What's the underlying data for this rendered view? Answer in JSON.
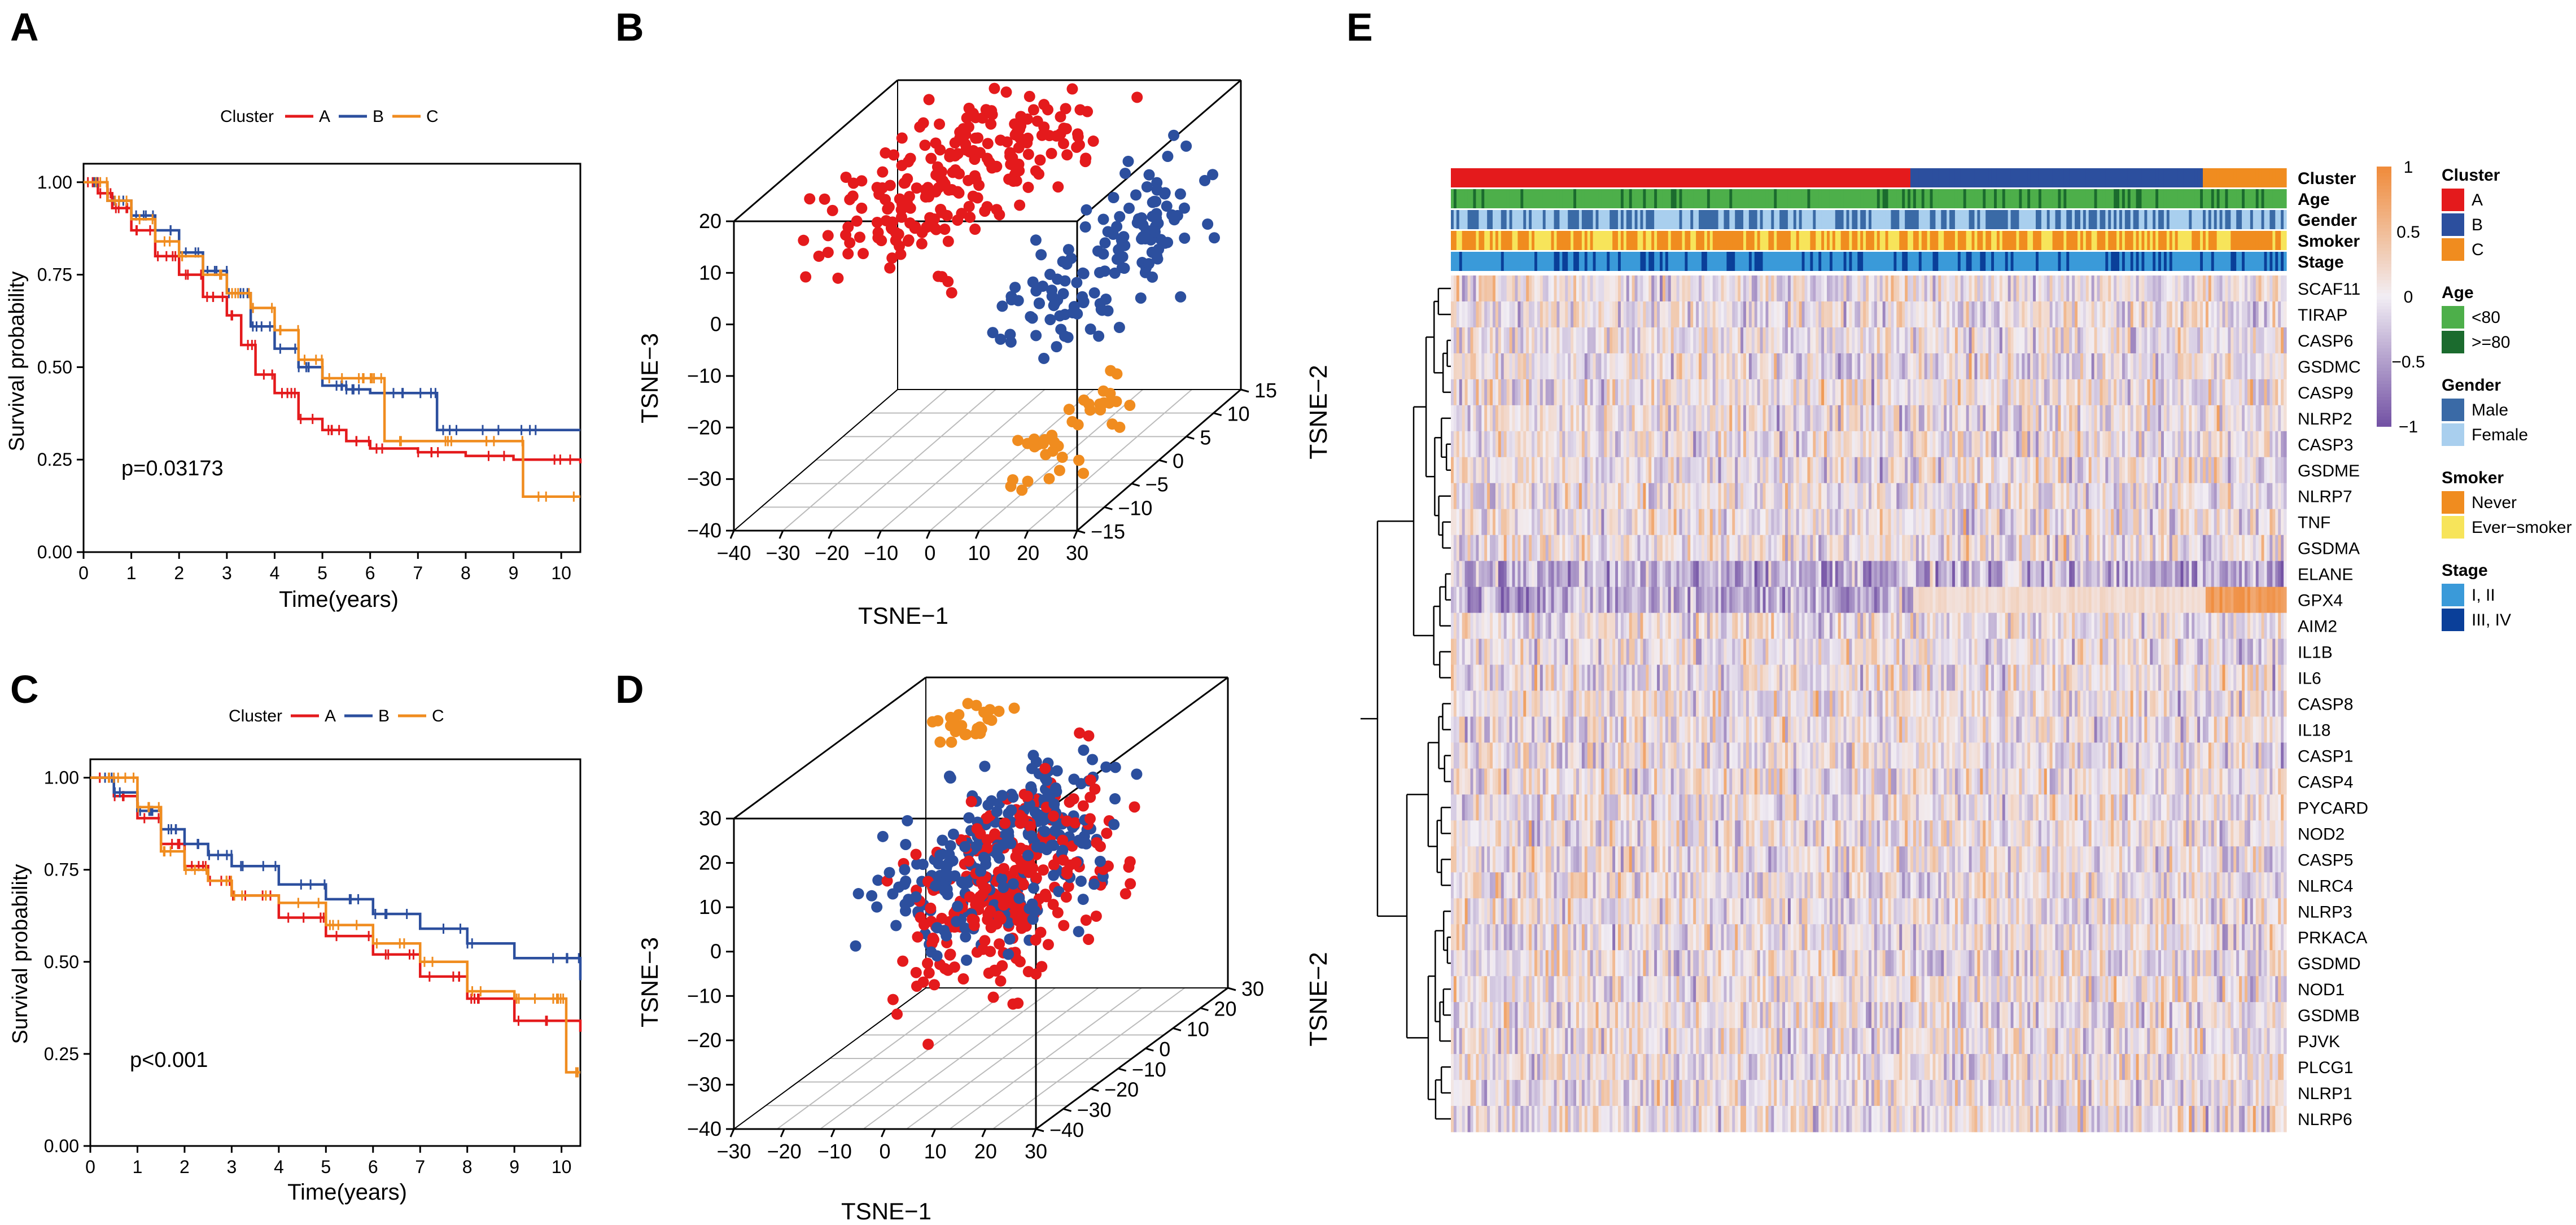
{
  "colors": {
    "cluster_a": "#e41a1c",
    "cluster_b": "#2c4f9e",
    "cluster_c": "#f08c1f",
    "heat_high": "#f08c3c",
    "heat_mid": "#f2eef4",
    "heat_low": "#7453a5",
    "age_lt80": "#4daf4a",
    "age_ge80": "#1b6b2e",
    "gender_male": "#3a6aa6",
    "gender_female": "#a9cfee",
    "smoker_never": "#f08c1f",
    "smoker_ever": "#f7e45a",
    "stage_1_2": "#3a9ad9",
    "stage_3_4": "#0a3f99"
  },
  "panels": {
    "a": "A",
    "b": "B",
    "c": "C",
    "d": "D",
    "e": "E"
  },
  "chart_data": [
    {
      "panel": "A",
      "type": "line",
      "subtype": "kaplan-meier",
      "legend_title": "Cluster",
      "legend_labels": [
        "A",
        "B",
        "C"
      ],
      "xlabel": "Time(years)",
      "ylabel": "Survival probability",
      "xlim": [
        0,
        10.4
      ],
      "ylim": [
        0,
        1.05
      ],
      "xticks": [
        0,
        1,
        2,
        3,
        4,
        5,
        6,
        7,
        8,
        9,
        10
      ],
      "yticks": [
        "0.00",
        "0.25",
        "0.50",
        "0.75",
        "1.00"
      ],
      "annotation": "p=0.03173",
      "series": [
        {
          "name": "A",
          "x": [
            0,
            0.3,
            0.6,
            1.0,
            1.5,
            2.0,
            2.5,
            3.0,
            3.3,
            3.6,
            4.0,
            4.5,
            5.0,
            5.5,
            6.0,
            7.0,
            8.0,
            9.0,
            10.4
          ],
          "y": [
            1.0,
            0.97,
            0.93,
            0.87,
            0.8,
            0.75,
            0.69,
            0.64,
            0.56,
            0.48,
            0.43,
            0.36,
            0.33,
            0.3,
            0.28,
            0.27,
            0.26,
            0.25,
            0.24
          ]
        },
        {
          "name": "B",
          "x": [
            0,
            0.5,
            1.0,
            1.5,
            2.0,
            2.5,
            3.0,
            3.5,
            4.0,
            4.5,
            5.0,
            5.5,
            6.0,
            7.0,
            7.4,
            8.0,
            9.0,
            10.4
          ],
          "y": [
            1.0,
            0.95,
            0.91,
            0.87,
            0.81,
            0.76,
            0.7,
            0.61,
            0.55,
            0.5,
            0.45,
            0.44,
            0.43,
            0.43,
            0.33,
            0.33,
            0.33,
            0.33
          ]
        },
        {
          "name": "C",
          "x": [
            0,
            0.5,
            1.0,
            1.5,
            2.0,
            2.5,
            3.0,
            3.5,
            4.0,
            4.5,
            5.0,
            5.5,
            6.0,
            6.3,
            7.0,
            8.0,
            9.0,
            9.2,
            10.4
          ],
          "y": [
            1.0,
            0.95,
            0.9,
            0.84,
            0.8,
            0.75,
            0.7,
            0.66,
            0.6,
            0.52,
            0.47,
            0.47,
            0.47,
            0.3,
            0.3,
            0.3,
            0.3,
            0.15,
            0.15
          ]
        }
      ]
    },
    {
      "panel": "B",
      "type": "scatter",
      "subtype": "3d",
      "xlabel": "TSNE−1",
      "ylabel": "TSNE−2",
      "zlabel": "TSNE−3",
      "xlim": [
        -40,
        30
      ],
      "ylim": [
        -15,
        15
      ],
      "zlim": [
        -40,
        20
      ],
      "xticks": [
        "−40",
        "−30",
        "−20",
        "−10",
        "0",
        "10",
        "20",
        "30"
      ],
      "yticks": [
        "−15",
        "−10",
        "−5",
        "0",
        "5",
        "10",
        "15"
      ],
      "zticks": [
        "−40",
        "−30",
        "−20",
        "−10",
        "0",
        "10",
        "20"
      ],
      "series": [
        {
          "name": "A",
          "description_x_range": [
            -38,
            15
          ],
          "description_y_range": [
            -15,
            15
          ],
          "description_z_range": [
            2,
            28
          ]
        },
        {
          "name": "B",
          "description_x_range": [
            5,
            30
          ],
          "description_y_range": [
            -15,
            15
          ],
          "description_z_range": [
            -20,
            15
          ]
        },
        {
          "name": "C",
          "description_x_range": [
            10,
            25
          ],
          "description_y_range": [
            -15,
            5
          ],
          "description_z_range": [
            -40,
            -20
          ]
        }
      ]
    },
    {
      "panel": "C",
      "type": "line",
      "subtype": "kaplan-meier",
      "legend_title": "Cluster",
      "legend_labels": [
        "A",
        "B",
        "C"
      ],
      "xlabel": "Time(years)",
      "ylabel": "Survival probability",
      "xlim": [
        0,
        10.4
      ],
      "ylim": [
        0,
        1.05
      ],
      "xticks": [
        0,
        1,
        2,
        3,
        4,
        5,
        6,
        7,
        8,
        9,
        10
      ],
      "yticks": [
        "0.00",
        "0.25",
        "0.50",
        "0.75",
        "1.00"
      ],
      "annotation": "p<0.001",
      "series": [
        {
          "name": "A",
          "x": [
            0,
            0.5,
            1.0,
            1.5,
            2.0,
            2.5,
            3.0,
            4.0,
            5.0,
            6.0,
            7.0,
            8.0,
            9.0,
            10.4
          ],
          "y": [
            1.0,
            0.95,
            0.89,
            0.82,
            0.76,
            0.72,
            0.68,
            0.62,
            0.57,
            0.52,
            0.46,
            0.4,
            0.34,
            0.31
          ]
        },
        {
          "name": "B",
          "x": [
            0,
            0.5,
            1.0,
            1.5,
            2.0,
            2.5,
            3.0,
            4.0,
            5.0,
            6.0,
            7.0,
            8.0,
            9.0,
            10.4
          ],
          "y": [
            1.0,
            0.96,
            0.91,
            0.86,
            0.82,
            0.79,
            0.76,
            0.71,
            0.67,
            0.63,
            0.59,
            0.55,
            0.51,
            0.45
          ]
        },
        {
          "name": "C",
          "x": [
            0,
            0.6,
            1.0,
            1.5,
            2.0,
            2.5,
            3.0,
            4.0,
            5.0,
            6.0,
            7.0,
            8.0,
            9.0,
            9.9,
            10.1,
            10.4
          ],
          "y": [
            1.0,
            1.0,
            0.92,
            0.8,
            0.75,
            0.72,
            0.68,
            0.66,
            0.6,
            0.55,
            0.5,
            0.42,
            0.4,
            0.4,
            0.2,
            0.2
          ]
        }
      ]
    },
    {
      "panel": "D",
      "type": "scatter",
      "subtype": "3d",
      "xlabel": "TSNE−1",
      "ylabel": "TSNE−2",
      "zlabel": "TSNE−3",
      "xlim": [
        -30,
        30
      ],
      "ylim": [
        -40,
        30
      ],
      "zlim": [
        -40,
        30
      ],
      "xticks": [
        "−30",
        "−20",
        "−10",
        "0",
        "10",
        "20",
        "30"
      ],
      "yticks": [
        "−40",
        "−30",
        "−20",
        "−10",
        "0",
        "10",
        "20",
        "30"
      ],
      "zticks": [
        "−40",
        "−30",
        "−20",
        "−10",
        "0",
        "10",
        "20",
        "30"
      ],
      "series": [
        {
          "name": "A",
          "description_x_range": [
            -15,
            25
          ],
          "description_y_range": [
            -30,
            25
          ],
          "description_z_range": [
            -30,
            25
          ]
        },
        {
          "name": "B",
          "description_x_range": [
            -20,
            25
          ],
          "description_y_range": [
            -30,
            25
          ],
          "description_z_range": [
            -20,
            28
          ]
        },
        {
          "name": "C",
          "description_x_range": [
            -25,
            -5
          ],
          "description_y_range": [
            10,
            30
          ],
          "description_z_range": [
            20,
            30
          ]
        }
      ]
    },
    {
      "panel": "E",
      "type": "heatmap",
      "ylabel_top": "TSNE−2",
      "ylabel_bottom": "TSNE−2",
      "genes": [
        "SCAF11",
        "TIRAP",
        "CASP6",
        "GSDMC",
        "CASP9",
        "NLRP2",
        "CASP3",
        "GSDME",
        "NLRP7",
        "TNF",
        "GSDMA",
        "ELANE",
        "GPX4",
        "AIM2",
        "IL1B",
        "IL6",
        "CASP8",
        "IL18",
        "CASP1",
        "CASP4",
        "PYCARD",
        "NOD2",
        "CASP5",
        "NLRC4",
        "NLRP3",
        "PRKACA",
        "GSDMD",
        "NOD1",
        "GSDMB",
        "PJVK",
        "PLCG1",
        "NLRP1",
        "NLRP6"
      ],
      "annotation_rows": [
        "Cluster",
        "Age",
        "Gender",
        "Smoker",
        "Stage"
      ],
      "cluster_fractions": {
        "A": 0.55,
        "B": 0.35,
        "C": 0.1
      },
      "colorbar_ticks": [
        "1",
        "0.5",
        "0",
        "−0.5",
        "−1"
      ],
      "colorbar_range": [
        -1,
        1
      ],
      "legends": [
        {
          "title": "Cluster",
          "items": [
            "A",
            "B",
            "C"
          ]
        },
        {
          "title": "Age",
          "items": [
            "<80",
            ">=80"
          ]
        },
        {
          "title": "Gender",
          "items": [
            "Male",
            "Female"
          ]
        },
        {
          "title": "Smoker",
          "items": [
            "Never",
            "Ever−smoker"
          ]
        },
        {
          "title": "Stage",
          "items": [
            "I, II",
            "III, IV"
          ]
        }
      ]
    }
  ]
}
